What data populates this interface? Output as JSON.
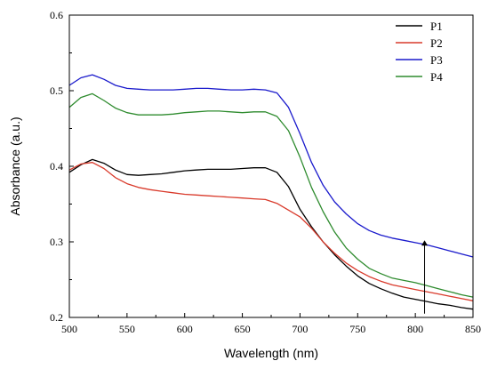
{
  "chart_data": {
    "type": "line",
    "title": "",
    "xlabel": "Wavelength (nm)",
    "ylabel": "Absorbance (a.u.)",
    "xlim": [
      500,
      850
    ],
    "ylim": [
      0.2,
      0.6
    ],
    "xticks": [
      500,
      550,
      600,
      650,
      700,
      750,
      800,
      850
    ],
    "yticks": [
      0.2,
      0.3,
      0.4,
      0.5,
      0.6
    ],
    "x_tick_labels": [
      "500",
      "550",
      "600",
      "650",
      "700",
      "750",
      "800",
      "850"
    ],
    "y_tick_labels": [
      "0.2",
      "0.3",
      "0.4",
      "0.5",
      "0.6"
    ],
    "legend_position": "top-right",
    "grid": false,
    "series": [
      {
        "name": "P1",
        "color": "#000000",
        "x": [
          500,
          510,
          520,
          530,
          540,
          550,
          560,
          570,
          580,
          590,
          600,
          610,
          620,
          630,
          640,
          650,
          660,
          670,
          680,
          690,
          700,
          710,
          720,
          730,
          740,
          750,
          760,
          770,
          780,
          790,
          800,
          810,
          820,
          830,
          840,
          850
        ],
        "y": [
          0.392,
          0.402,
          0.409,
          0.404,
          0.395,
          0.389,
          0.388,
          0.389,
          0.39,
          0.392,
          0.394,
          0.395,
          0.396,
          0.396,
          0.396,
          0.397,
          0.398,
          0.398,
          0.392,
          0.373,
          0.343,
          0.32,
          0.3,
          0.283,
          0.268,
          0.255,
          0.245,
          0.238,
          0.232,
          0.227,
          0.224,
          0.221,
          0.218,
          0.216,
          0.213,
          0.211
        ]
      },
      {
        "name": "P2",
        "color": "#d93a2b",
        "x": [
          500,
          510,
          520,
          530,
          540,
          550,
          560,
          570,
          580,
          590,
          600,
          610,
          620,
          630,
          640,
          650,
          660,
          670,
          680,
          690,
          700,
          710,
          720,
          730,
          740,
          750,
          760,
          770,
          780,
          790,
          800,
          810,
          820,
          830,
          840,
          850
        ],
        "y": [
          0.395,
          0.403,
          0.405,
          0.397,
          0.385,
          0.377,
          0.372,
          0.369,
          0.367,
          0.365,
          0.363,
          0.362,
          0.361,
          0.36,
          0.359,
          0.358,
          0.357,
          0.356,
          0.351,
          0.342,
          0.333,
          0.318,
          0.3,
          0.285,
          0.272,
          0.262,
          0.254,
          0.248,
          0.243,
          0.24,
          0.237,
          0.234,
          0.231,
          0.228,
          0.225,
          0.222
        ]
      },
      {
        "name": "P3",
        "color": "#1a1acc",
        "x": [
          500,
          510,
          520,
          530,
          540,
          550,
          560,
          570,
          580,
          590,
          600,
          610,
          620,
          630,
          640,
          650,
          660,
          670,
          680,
          690,
          700,
          710,
          720,
          730,
          740,
          750,
          760,
          770,
          780,
          790,
          800,
          810,
          820,
          830,
          840,
          850
        ],
        "y": [
          0.507,
          0.517,
          0.521,
          0.515,
          0.507,
          0.503,
          0.502,
          0.501,
          0.501,
          0.501,
          0.502,
          0.503,
          0.503,
          0.502,
          0.501,
          0.501,
          0.502,
          0.501,
          0.497,
          0.478,
          0.443,
          0.405,
          0.375,
          0.353,
          0.337,
          0.324,
          0.315,
          0.309,
          0.305,
          0.302,
          0.299,
          0.296,
          0.292,
          0.288,
          0.284,
          0.28
        ]
      },
      {
        "name": "P4",
        "color": "#2e8b2e",
        "x": [
          500,
          510,
          520,
          530,
          540,
          550,
          560,
          570,
          580,
          590,
          600,
          610,
          620,
          630,
          640,
          650,
          660,
          670,
          680,
          690,
          700,
          710,
          720,
          730,
          740,
          750,
          760,
          770,
          780,
          790,
          800,
          810,
          820,
          830,
          840,
          850
        ],
        "y": [
          0.478,
          0.491,
          0.496,
          0.487,
          0.477,
          0.471,
          0.468,
          0.468,
          0.468,
          0.469,
          0.471,
          0.472,
          0.473,
          0.473,
          0.472,
          0.471,
          0.472,
          0.472,
          0.466,
          0.447,
          0.412,
          0.372,
          0.34,
          0.313,
          0.292,
          0.277,
          0.265,
          0.258,
          0.252,
          0.249,
          0.246,
          0.242,
          0.238,
          0.234,
          0.23,
          0.227
        ]
      }
    ],
    "annotations": [
      {
        "type": "arrow",
        "x": 808,
        "y_from": 0.205,
        "y_to": 0.302,
        "color": "#000000"
      }
    ]
  }
}
